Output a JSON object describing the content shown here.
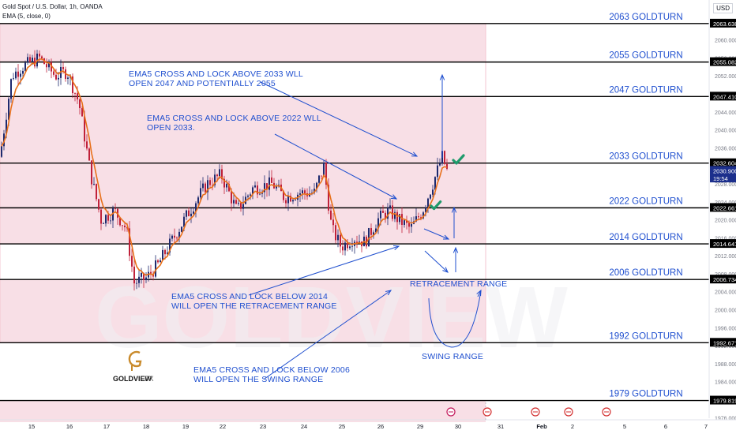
{
  "header": {
    "symbol": "Gold Spot / U.S. Dollar, 1h, OANDA",
    "indicator": "EMA (5, close, 0)",
    "currency": "USD"
  },
  "colors": {
    "zone": "#f8dfe6",
    "line": "#000000",
    "text": "#1f4fcf",
    "ema": "#e8701a",
    "up": "#1e2a6e",
    "down": "#c0213a",
    "check": "#1f9a6b"
  },
  "price_labels": [
    {
      "value": "2063.638",
      "price": 2063.638
    },
    {
      "value": "2055.082",
      "price": 2055.082
    },
    {
      "value": "2047.410",
      "price": 2047.41
    },
    {
      "value": "2032.604",
      "price": 2032.604
    },
    {
      "value": "2030.900",
      "price": 2030.9,
      "current": true
    },
    {
      "value": "19:54",
      "price": 2029.2,
      "timer": true
    },
    {
      "value": "2022.661",
      "price": 2022.661
    },
    {
      "value": "2014.641",
      "price": 2014.641
    },
    {
      "value": "2006.734",
      "price": 2006.734
    },
    {
      "value": "1992.671",
      "price": 1992.671
    },
    {
      "value": "1979.819",
      "price": 1979.819
    }
  ],
  "goldturns": [
    {
      "label": "2063 GOLDTURN",
      "price": 2063.638
    },
    {
      "label": "2055 GOLDTURN",
      "price": 2055.082
    },
    {
      "label": "2047 GOLDTURN",
      "price": 2047.41
    },
    {
      "label": "2033 GOLDTURN",
      "price": 2032.604
    },
    {
      "label": "2022 GOLDTURN",
      "price": 2022.661
    },
    {
      "label": "2014 GOLDTURN",
      "price": 2014.641
    },
    {
      "label": "2006 GOLDTURN",
      "price": 2006.734
    },
    {
      "label": "1992 GOLDTURN",
      "price": 1992.671
    },
    {
      "label": "1979 GOLDTURN",
      "price": 1979.819
    }
  ],
  "annotations": [
    {
      "lines": [
        "EMA5 CROSS AND LOCK ABOVE 2033 WLL",
        "OPEN 2047 AND POTENTIALLY 2055"
      ]
    },
    {
      "lines": [
        "EMA5 CROSS AND LOCK ABOVE 2022 WLL",
        "OPEN 2033."
      ]
    },
    {
      "lines": [
        "EMA5 CROSS AND LOCK BELOW 2014",
        "WILL OPEN THE RETRACEMENT RANGE"
      ]
    },
    {
      "lines": [
        "EMA5 CROSS AND LOCK BELOW 2006",
        "WILL OPEN THE SWING RANGE"
      ]
    },
    {
      "lines": [
        "RETRACEMENT RANGE"
      ]
    },
    {
      "lines": [
        "SWING RANGE"
      ]
    }
  ],
  "logo": {
    "text": "GOLDVIEW",
    "suffix": "FX"
  },
  "chart_data": {
    "type": "candlestick",
    "title": "Gold Spot / U.S. Dollar, 1h, OANDA",
    "ylim": [
      1975.0,
      2068.0
    ],
    "y_ticks": [
      1976,
      1980,
      1984,
      1988,
      1992,
      1996,
      2000,
      2004,
      2008,
      2012,
      2016,
      2020,
      2024,
      2028,
      2032,
      2036,
      2040,
      2044,
      2048,
      2052,
      2056,
      2060
    ],
    "x_ticks": [
      "15",
      "16",
      "17",
      "18",
      "19",
      "22",
      "23",
      "24",
      "25",
      "26",
      "29",
      "30",
      "31",
      "Feb",
      "2",
      "5",
      "6",
      "7"
    ],
    "close_path": [
      [
        0,
        2034
      ],
      [
        15,
        2052
      ],
      [
        28,
        2054
      ],
      [
        50,
        2056
      ],
      [
        70,
        2052
      ],
      [
        85,
        2053
      ],
      [
        100,
        2046
      ],
      [
        115,
        2030
      ],
      [
        128,
        2020
      ],
      [
        145,
        2022
      ],
      [
        160,
        2018
      ],
      [
        170,
        2006
      ],
      [
        185,
        2007
      ],
      [
        200,
        2010
      ],
      [
        220,
        2016
      ],
      [
        240,
        2022
      ],
      [
        262,
        2028
      ],
      [
        280,
        2030
      ],
      [
        300,
        2022
      ],
      [
        320,
        2027
      ],
      [
        345,
        2028
      ],
      [
        360,
        2025
      ],
      [
        380,
        2026
      ],
      [
        398,
        2026
      ],
      [
        410,
        2032
      ],
      [
        420,
        2018
      ],
      [
        432,
        2014
      ],
      [
        448,
        2016
      ],
      [
        462,
        2015
      ],
      [
        478,
        2020
      ],
      [
        492,
        2022
      ],
      [
        505,
        2020
      ],
      [
        520,
        2018
      ],
      [
        535,
        2022
      ],
      [
        548,
        2028
      ],
      [
        560,
        2034
      ],
      [
        566,
        2030.9
      ]
    ],
    "ema5": "EMA (5, close, 0)",
    "horizontal_levels": [
      2063.638,
      2055.082,
      2047.41,
      2032.604,
      2022.661,
      2014.641,
      2006.734,
      1992.671,
      1979.819
    ]
  }
}
